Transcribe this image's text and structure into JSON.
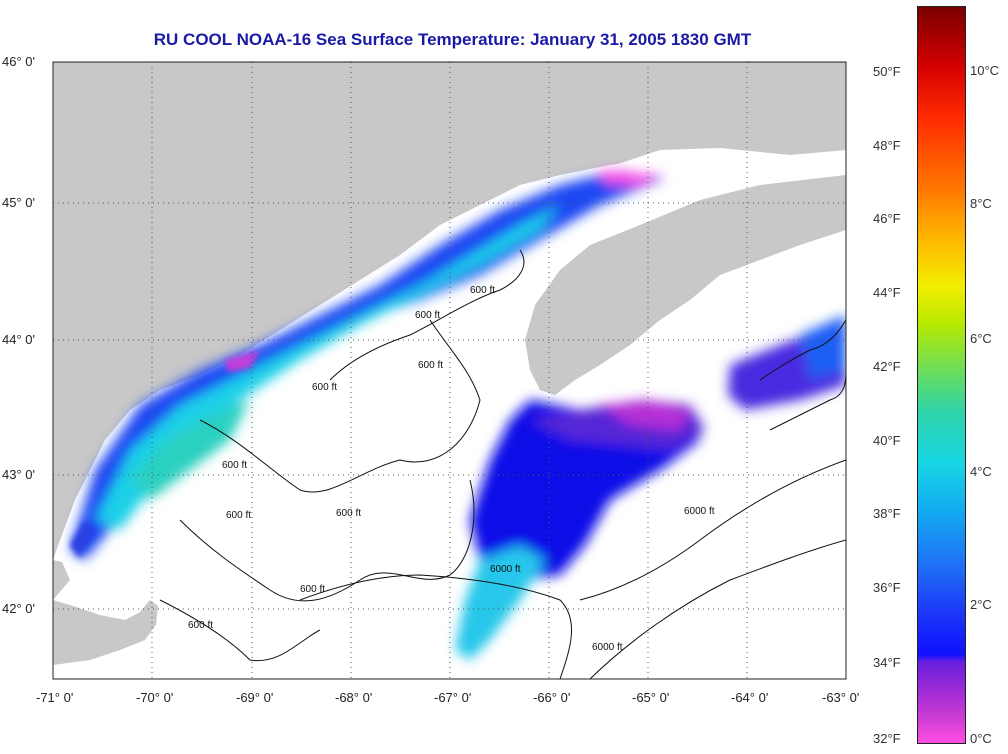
{
  "title": "RU COOL  NOAA-16  Sea Surface Temperature:  January 31, 2005 1830 GMT",
  "lat_labels": [
    "46° 0'",
    "45° 0'",
    "44° 0'",
    "43° 0'",
    "42° 0'"
  ],
  "lon_labels": [
    "-71° 0'",
    "-70° 0'",
    "-69° 0'",
    "-68° 0'",
    "-67° 0'",
    "-66° 0'",
    "-65° 0'",
    "-64° 0'",
    "-63° 0'"
  ],
  "isobath_labels": [
    "600 ft",
    "600 ft",
    "600 ft",
    "600 ft",
    "600 ft",
    "600 ft",
    "600 ft",
    "600 ft",
    "600 ft",
    "6000 ft",
    "6000 ft",
    "6000 ft"
  ],
  "colorbar": {
    "fahrenheit": [
      "50°F",
      "48°F",
      "46°F",
      "44°F",
      "42°F",
      "40°F",
      "38°F",
      "36°F",
      "34°F",
      "32°F"
    ],
    "celsius": [
      "10°C",
      "8°C",
      "6°C",
      "4°C",
      "2°C",
      "0°C"
    ]
  },
  "colors": {
    "land": "#c8c8c8",
    "water_no_data": "#ffffff",
    "title": "#1a1aa6"
  }
}
